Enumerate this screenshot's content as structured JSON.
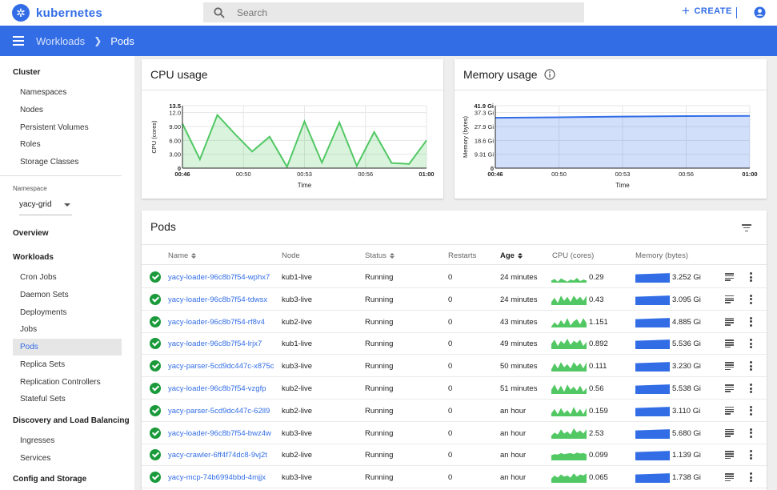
{
  "header": {
    "brand": "kubernetes",
    "search_placeholder": "Search",
    "create_label": "CREATE"
  },
  "breadcrumb": {
    "parent": "Workloads",
    "current": "Pods"
  },
  "sidebar": {
    "cluster_title": "Cluster",
    "cluster_items": [
      "Namespaces",
      "Nodes",
      "Persistent Volumes",
      "Roles",
      "Storage Classes"
    ],
    "namespace_label": "Namespace",
    "namespace_value": "yacy-grid",
    "overview": "Overview",
    "workloads_title": "Workloads",
    "workloads_items": [
      "Cron Jobs",
      "Daemon Sets",
      "Deployments",
      "Jobs",
      "Pods",
      "Replica Sets",
      "Replication Controllers",
      "Stateful Sets"
    ],
    "active_item": "Pods",
    "discovery_title": "Discovery and Load Balancing",
    "discovery_items": [
      "Ingresses",
      "Services"
    ],
    "config_title": "Config and Storage"
  },
  "cpu_card": {
    "title": "CPU usage"
  },
  "memory_card": {
    "title": "Memory usage",
    "info_icon": "info-icon"
  },
  "chart_data": [
    {
      "type": "area",
      "title": "CPU usage",
      "xlabel": "Time",
      "ylabel": "CPU (cores)",
      "ylim": [
        0,
        13.5
      ],
      "yticks": [
        "0",
        "3.00",
        "6.00",
        "9.00",
        "12.0",
        "13.5"
      ],
      "xticks": [
        "00:46",
        "00:50",
        "00:53",
        "00:56",
        "01:00"
      ],
      "x": [
        "00:46",
        "00:47",
        "00:48",
        "00:49",
        "00:50",
        "00:51",
        "00:52",
        "00:53",
        "00:54",
        "00:55",
        "00:56",
        "00:57",
        "00:58",
        "00:59",
        "01:00"
      ],
      "series": [
        {
          "values": [
            9.6,
            1.9,
            11.5,
            7.4,
            3.6,
            6.8,
            0.3,
            10.1,
            1.2,
            9.9,
            0.5,
            7.8,
            1.1,
            0.9,
            6.0
          ]
        }
      ],
      "color": "#52c864"
    },
    {
      "type": "area",
      "title": "Memory usage",
      "xlabel": "Time",
      "ylabel": "Memory (bytes)",
      "ylim": [
        0,
        41.9
      ],
      "yticks": [
        "0",
        "9.31 Gi",
        "18.6 Gi",
        "27.9 Gi",
        "37.3 Gi",
        "41.9 Gi"
      ],
      "xticks": [
        "00:46",
        "00:50",
        "00:53",
        "00:56",
        "01:00"
      ],
      "x": [
        "00:46",
        "00:50",
        "00:53",
        "00:56",
        "01:00"
      ],
      "series": [
        {
          "values": [
            33.8,
            34.1,
            34.6,
            34.9,
            35.1
          ]
        }
      ],
      "color": "#326de6"
    }
  ],
  "pods": {
    "title": "Pods",
    "columns": {
      "name": "Name",
      "node": "Node",
      "status": "Status",
      "restarts": "Restarts",
      "age": "Age",
      "cpu": "CPU (cores)",
      "memory": "Memory (bytes)"
    },
    "rows": [
      {
        "name": "yacy-loader-96c8b7f54-wphx7",
        "node": "kub1-live",
        "status": "Running",
        "restarts": "0",
        "age": "24 minutes",
        "cpu": "0.29",
        "memory": "3.252 Gi",
        "cpu_spark": [
          0.2,
          0.35,
          0.1,
          0.4,
          0.25,
          0.1,
          0.3,
          0.2,
          0.45,
          0.15,
          0.3,
          0.2
        ],
        "mem_level": 0.85
      },
      {
        "name": "yacy-loader-96c8b7f54-tdwsx",
        "node": "kub3-live",
        "status": "Running",
        "restarts": "0",
        "age": "24 minutes",
        "cpu": "0.43",
        "memory": "3.095 Gi",
        "cpu_spark": [
          0.3,
          0.7,
          0.2,
          0.9,
          0.4,
          0.8,
          0.3,
          0.9,
          0.5,
          0.8,
          0.4,
          0.9
        ],
        "mem_level": 0.85
      },
      {
        "name": "yacy-loader-96c8b7f54-rf8v4",
        "node": "kub2-live",
        "status": "Running",
        "restarts": "0",
        "age": "43 minutes",
        "cpu": "1.151",
        "memory": "4.885 Gi",
        "cpu_spark": [
          0.1,
          0.5,
          0.2,
          0.7,
          0.3,
          0.9,
          0.2,
          0.6,
          0.8,
          0.3,
          0.9,
          0.4
        ],
        "mem_level": 0.85
      },
      {
        "name": "yacy-loader-96c8b7f54-lrjx7",
        "node": "kub1-live",
        "status": "Running",
        "restarts": "0",
        "age": "49 minutes",
        "cpu": "0.892",
        "memory": "5.536 Gi",
        "cpu_spark": [
          0.5,
          0.9,
          0.3,
          0.8,
          0.5,
          1.0,
          0.4,
          0.8,
          0.6,
          0.9,
          0.3,
          0.7
        ],
        "mem_level": 0.85
      },
      {
        "name": "yacy-parser-5cd9dc447c-x875c",
        "node": "kub3-live",
        "status": "Running",
        "restarts": "0",
        "age": "50 minutes",
        "cpu": "0.111",
        "memory": "3.230 Gi",
        "cpu_spark": [
          0.2,
          0.8,
          0.3,
          0.9,
          0.4,
          0.7,
          0.3,
          0.9,
          0.5,
          0.8,
          0.3,
          0.9
        ],
        "mem_level": 0.85
      },
      {
        "name": "yacy-loader-96c8b7f54-vzgfp",
        "node": "kub2-live",
        "status": "Running",
        "restarts": "0",
        "age": "51 minutes",
        "cpu": "0.56",
        "memory": "5.538 Gi",
        "cpu_spark": [
          0.4,
          0.9,
          0.3,
          0.8,
          0.2,
          0.9,
          0.4,
          0.7,
          0.3,
          0.8,
          0.2,
          0.6
        ],
        "mem_level": 0.85
      },
      {
        "name": "yacy-parser-5cd9dc447c-62ll9",
        "node": "kub2-live",
        "status": "Running",
        "restarts": "0",
        "age": "an hour",
        "cpu": "0.159",
        "memory": "3.110 Gi",
        "cpu_spark": [
          0.3,
          0.7,
          0.2,
          0.8,
          0.3,
          0.6,
          0.2,
          0.9,
          0.3,
          0.7,
          0.2,
          0.8
        ],
        "mem_level": 0.85
      },
      {
        "name": "yacy-loader-96c8b7f54-bwz4w",
        "node": "kub3-live",
        "status": "Running",
        "restarts": "0",
        "age": "an hour",
        "cpu": "2.53",
        "memory": "5.680 Gi",
        "cpu_spark": [
          0.3,
          0.6,
          0.4,
          0.9,
          0.5,
          0.7,
          0.4,
          1.0,
          0.6,
          0.8,
          0.5,
          0.9
        ],
        "mem_level": 0.85
      },
      {
        "name": "yacy-crawler-6ff4f74dc8-9vj2t",
        "node": "kub2-live",
        "status": "Running",
        "restarts": "0",
        "age": "an hour",
        "cpu": "0.099",
        "memory": "1.139 Gi",
        "cpu_spark": [
          0.5,
          0.6,
          0.55,
          0.7,
          0.6,
          0.65,
          0.7,
          0.6,
          0.75,
          0.65,
          0.7,
          0.6
        ],
        "mem_level": 0.85
      },
      {
        "name": "yacy-mcp-74b6994bbd-4mjjx",
        "node": "kub3-live",
        "status": "Running",
        "restarts": "0",
        "age": "an hour",
        "cpu": "0.065",
        "memory": "1.738 Gi",
        "cpu_spark": [
          0.4,
          0.7,
          0.5,
          0.8,
          0.6,
          0.7,
          0.5,
          0.9,
          0.6,
          0.8,
          0.7,
          0.9
        ],
        "mem_level": 0.85
      }
    ]
  },
  "colors": {
    "accent": "#326de6",
    "ok": "#1a9a3a",
    "cpu_green": "#52c864"
  }
}
